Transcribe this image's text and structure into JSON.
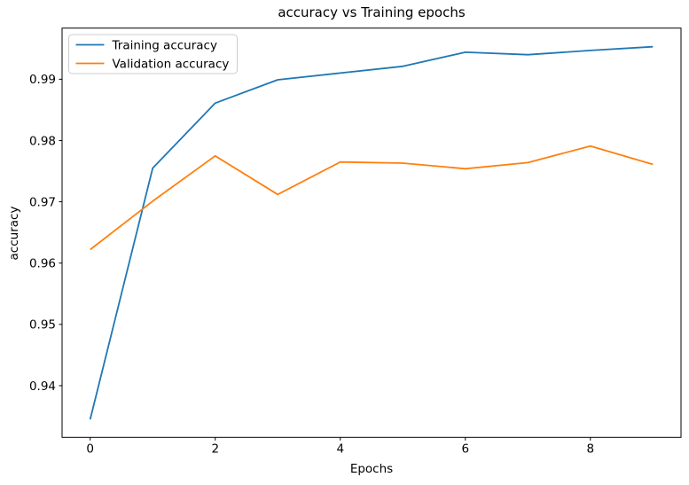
{
  "figure": {
    "title": "accuracy vs Training epochs",
    "xlabel": "Epochs",
    "ylabel": "accuracy"
  },
  "chart_data": {
    "type": "line",
    "title": "accuracy vs Training epochs",
    "xlabel": "Epochs",
    "ylabel": "accuracy",
    "x": [
      0,
      1,
      2,
      3,
      4,
      5,
      6,
      7,
      8,
      9
    ],
    "series": [
      {
        "name": "Training accuracy",
        "color": "#1f77b4",
        "values": [
          0.9345,
          0.9755,
          0.9861,
          0.9899,
          0.991,
          0.9921,
          0.9944,
          0.994,
          0.9947,
          0.9953
        ]
      },
      {
        "name": "Validation accuracy",
        "color": "#ff7f0e",
        "values": [
          0.9622,
          0.9701,
          0.9775,
          0.9712,
          0.9765,
          0.9763,
          0.9754,
          0.9764,
          0.9791,
          0.9761
        ]
      }
    ],
    "xlim": [
      -0.45,
      9.45
    ],
    "ylim": [
      0.93156,
      0.99834
    ],
    "xticks": [
      0,
      2,
      4,
      6,
      8
    ],
    "yticks": [
      0.94,
      0.95,
      0.96,
      0.97,
      0.98,
      0.99
    ],
    "grid": false,
    "legend_position": "upper left"
  },
  "style": {
    "background": "#ffffff",
    "spine_color": "#000000",
    "legend_border": "#cccccc",
    "legend_fill_alpha": 0.8
  }
}
